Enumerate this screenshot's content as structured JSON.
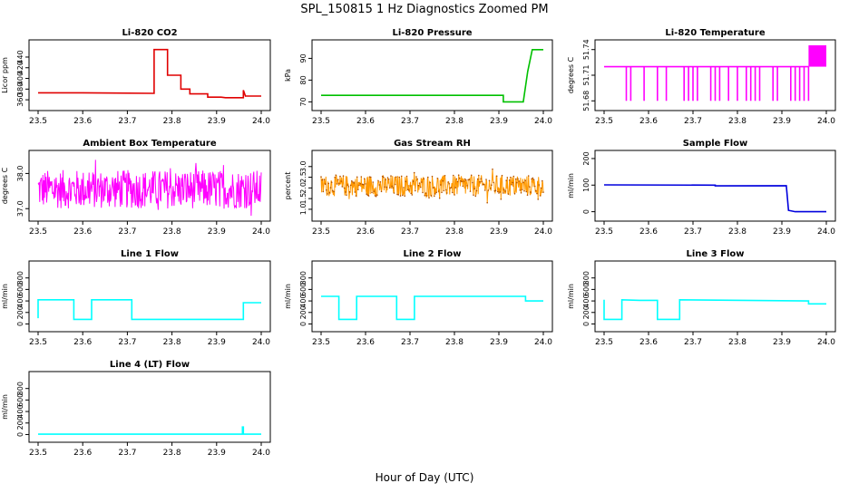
{
  "figure": {
    "title": "SPL_150815  1 Hz Diagnostics Zoomed PM",
    "xlabel": "Hour of Day (UTC)"
  },
  "chart_data": [
    {
      "type": "line",
      "title": "Li-820 CO2",
      "ylabel": "Licor ppm",
      "color": "#e00000",
      "xlim": [
        23.5,
        24.0
      ],
      "ylim": [
        350,
        462
      ],
      "xticks": [
        "23.5",
        "23.6",
        "23.7",
        "23.8",
        "23.9",
        "24.0"
      ],
      "yticks": [
        360,
        380,
        400,
        420,
        440
      ],
      "x": [
        23.5,
        23.6,
        23.76,
        23.76,
        23.79,
        23.79,
        23.82,
        23.82,
        23.84,
        23.84,
        23.88,
        23.88,
        23.91,
        23.92,
        23.96,
        23.96,
        23.965,
        23.965,
        24.0
      ],
      "y": [
        373,
        373,
        372,
        454,
        454,
        406,
        406,
        380,
        380,
        371,
        371,
        365,
        365,
        364,
        364,
        378,
        366,
        367,
        367
      ]
    },
    {
      "type": "line",
      "title": "Li-820 Pressure",
      "ylabel": "kPa",
      "color": "#00c000",
      "xlim": [
        23.5,
        24.0
      ],
      "ylim": [
        68.5,
        96
      ],
      "xticks": [
        "23.5",
        "23.6",
        "23.7",
        "23.8",
        "23.9",
        "24.0"
      ],
      "yticks": [
        70,
        80,
        90
      ],
      "x": [
        23.5,
        23.91,
        23.91,
        23.955,
        23.965,
        23.975,
        24.0
      ],
      "y": [
        73,
        73,
        70,
        70,
        84,
        94,
        94
      ]
    },
    {
      "type": "line",
      "title": "Li-820 Temperature",
      "ylabel": "degrees C",
      "color": "#ff00ff",
      "xlim": [
        23.5,
        24.0
      ],
      "ylim": [
        51.675,
        51.745
      ],
      "xticks": [
        "23.5",
        "23.6",
        "23.7",
        "23.8",
        "23.9",
        "24.0"
      ],
      "yticks": [
        51.68,
        51.71,
        51.74
      ],
      "ytick_labels": [
        "51.68",
        "51.71",
        "51.74"
      ],
      "baseline": 51.72,
      "dips_to": 51.68,
      "dips_x": [
        23.55,
        23.56,
        23.59,
        23.62,
        23.64,
        23.68,
        23.69,
        23.7,
        23.71,
        23.74,
        23.75,
        23.76,
        23.78,
        23.8,
        23.82,
        23.83,
        23.84,
        23.85,
        23.88,
        23.89,
        23.92,
        23.93,
        23.94,
        23.95,
        23.96
      ],
      "high_band_x": [
        23.96,
        24.0
      ],
      "high_band_y": [
        51.72,
        51.745
      ]
    },
    {
      "type": "line",
      "title": "Ambient Box Temperature",
      "ylabel": "degrees C",
      "color": "#ff00ff",
      "xlim": [
        23.5,
        24.0
      ],
      "ylim": [
        36.8,
        38.5
      ],
      "xticks": [
        "23.5",
        "23.6",
        "23.7",
        "23.8",
        "23.9",
        "24.0"
      ],
      "yticks": [
        37.0,
        38.0
      ],
      "ytick_labels": [
        "37.0",
        "38.0"
      ],
      "noise_center": 37.55,
      "noise_amplitude": 0.55
    },
    {
      "type": "line",
      "title": "Gas Stream RH",
      "ylabel": "percent",
      "color": "#ff9900",
      "xlim": [
        23.5,
        24.0
      ],
      "ylim": [
        0.7,
        3.5
      ],
      "xticks": [
        "23.5",
        "23.6",
        "23.7",
        "23.8",
        "23.9",
        "24.0"
      ],
      "yticks": [
        1.0,
        1.5,
        2.0,
        2.5,
        3.0
      ],
      "ytick_labels": [
        "1.0",
        "1.5",
        "2.0",
        "2.5",
        "3.0"
      ],
      "noise_center": 2.1,
      "noise_amplitude": 0.5
    },
    {
      "type": "line",
      "title": "Sample Flow",
      "ylabel": "ml/min",
      "color": "#0000dd",
      "xlim": [
        23.5,
        24.0
      ],
      "ylim": [
        -15,
        210
      ],
      "xticks": [
        "23.5",
        "23.6",
        "23.7",
        "23.8",
        "23.9",
        "24.0"
      ],
      "yticks": [
        0,
        100,
        200
      ],
      "x": [
        23.5,
        23.75,
        23.75,
        23.91,
        23.915,
        23.93,
        24.0
      ],
      "y": [
        101,
        100,
        97,
        98,
        5,
        0,
        0
      ]
    },
    {
      "type": "line",
      "title": "Line 1 Flow",
      "ylabel": "ml/min",
      "color": "#00ffff",
      "xlim": [
        23.5,
        24.0
      ],
      "ylim": [
        -40,
        1000
      ],
      "xticks": [
        "23.5",
        "23.6",
        "23.7",
        "23.8",
        "23.9",
        "24.0"
      ],
      "yticks": [
        0,
        200,
        400,
        600,
        800
      ],
      "x": [
        23.5,
        23.5,
        23.58,
        23.58,
        23.62,
        23.62,
        23.71,
        23.71,
        23.96,
        23.96,
        24.0
      ],
      "y": [
        100,
        420,
        420,
        80,
        80,
        420,
        420,
        80,
        80,
        370,
        370
      ]
    },
    {
      "type": "line",
      "title": "Line 2 Flow",
      "ylabel": "ml/min",
      "color": "#00ffff",
      "xlim": [
        23.5,
        24.0
      ],
      "ylim": [
        -40,
        1000
      ],
      "xticks": [
        "23.5",
        "23.6",
        "23.7",
        "23.8",
        "23.9",
        "24.0"
      ],
      "yticks": [
        0,
        200,
        400,
        600,
        800
      ],
      "x": [
        23.5,
        23.54,
        23.54,
        23.58,
        23.58,
        23.67,
        23.67,
        23.71,
        23.71,
        23.96,
        23.96,
        24.0
      ],
      "y": [
        480,
        480,
        80,
        80,
        480,
        480,
        80,
        80,
        480,
        480,
        400,
        400
      ]
    },
    {
      "type": "line",
      "title": "Line 3 Flow",
      "ylabel": "ml/min",
      "color": "#00ffff",
      "xlim": [
        23.5,
        24.0
      ],
      "ylim": [
        -40,
        1000
      ],
      "xticks": [
        "23.5",
        "23.6",
        "23.7",
        "23.8",
        "23.9",
        "24.0"
      ],
      "yticks": [
        0,
        200,
        400,
        600,
        800
      ],
      "x": [
        23.5,
        23.5,
        23.54,
        23.54,
        23.58,
        23.62,
        23.62,
        23.67,
        23.67,
        23.96,
        23.96,
        24.0
      ],
      "y": [
        420,
        80,
        80,
        420,
        410,
        410,
        80,
        80,
        420,
        400,
        350,
        350
      ]
    },
    {
      "type": "line",
      "title": "Line 4 (LT) Flow",
      "ylabel": "ml/min",
      "color": "#00ffff",
      "xlim": [
        23.5,
        24.0
      ],
      "ylim": [
        -40,
        1000
      ],
      "xticks": [
        "23.5",
        "23.6",
        "23.7",
        "23.8",
        "23.9",
        "24.0"
      ],
      "yticks": [
        0,
        200,
        400,
        600,
        800
      ],
      "x": [
        23.5,
        23.958,
        23.958,
        23.96,
        23.96,
        24.0
      ],
      "y": [
        5,
        5,
        130,
        130,
        5,
        5
      ]
    }
  ]
}
